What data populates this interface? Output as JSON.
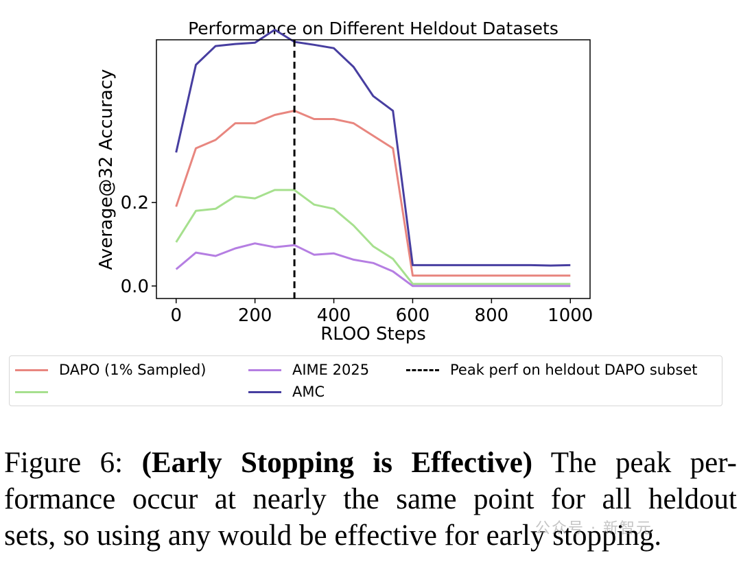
{
  "chart_data": {
    "type": "line",
    "title": "Performance on Different Heldout Datasets",
    "xlabel": "RLOO Steps",
    "ylabel": "Average@32 Accuracy",
    "xlim": [
      -50,
      1050
    ],
    "ylim": [
      -0.03,
      0.59
    ],
    "xticks": [
      "0",
      "200",
      "400",
      "600",
      "800",
      "1000"
    ],
    "yticks": [
      "0.0",
      "0.2"
    ],
    "x": [
      0,
      50,
      100,
      150,
      200,
      250,
      300,
      350,
      400,
      450,
      500,
      550,
      600,
      650,
      700,
      750,
      800,
      850,
      900,
      950,
      1000
    ],
    "series": [
      {
        "name": "DAPO (1% Sampled)",
        "color": "#e8867f",
        "values": [
          0.19,
          0.33,
          0.35,
          0.39,
          0.39,
          0.41,
          0.42,
          0.4,
          0.4,
          0.39,
          0.36,
          0.33,
          0.025,
          0.025,
          0.025,
          0.025,
          0.025,
          0.025,
          0.025,
          0.025,
          0.025
        ]
      },
      {
        "name": "",
        "color": "#a6e08e",
        "values": [
          0.105,
          0.18,
          0.185,
          0.215,
          0.21,
          0.23,
          0.23,
          0.195,
          0.185,
          0.145,
          0.095,
          0.065,
          0.005,
          0.005,
          0.005,
          0.005,
          0.005,
          0.005,
          0.005,
          0.005,
          0.005
        ]
      },
      {
        "name": "AIME 2025",
        "color": "#b57ee2",
        "values": [
          0.04,
          0.08,
          0.072,
          0.09,
          0.102,
          0.093,
          0.098,
          0.075,
          0.078,
          0.063,
          0.055,
          0.035,
          0.0,
          0.0,
          0.0,
          0.0,
          0.0,
          0.0,
          0.0,
          0.0,
          0.0
        ]
      },
      {
        "name": "AMC",
        "color": "#473ea0",
        "values": [
          0.32,
          0.53,
          0.575,
          0.58,
          0.583,
          0.614,
          0.585,
          0.578,
          0.57,
          0.525,
          0.455,
          0.42,
          0.05,
          0.05,
          0.05,
          0.05,
          0.05,
          0.05,
          0.05,
          0.049,
          0.05
        ]
      }
    ],
    "vline": {
      "x": 300,
      "label": "Peak perf on heldout DAPO subset",
      "style": "dashed",
      "color": "#000000"
    },
    "grid": false,
    "legend_position": "bottom"
  },
  "caption": {
    "lines": [
      {
        "prefix": "Figure 6: ",
        "bold": "(Early Stopping is Effective)",
        "rest": " The peak per-"
      },
      {
        "text": "formance occur at nearly the same point for all heldout"
      },
      {
        "text": "sets, so using any would be effective for early stopping."
      }
    ]
  },
  "watermark": "公众号 · 新智元"
}
